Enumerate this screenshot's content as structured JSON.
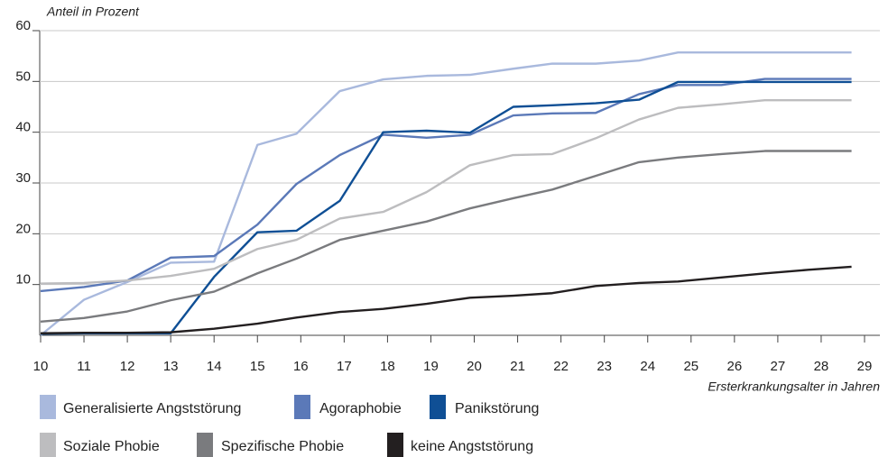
{
  "chart_data": {
    "type": "line",
    "y_label": "Anteil in Prozent",
    "x_label": "Ersterkrankungsalter in Jahren",
    "x": [
      10,
      11,
      12,
      13,
      14,
      15,
      15.9,
      16.9,
      17.9,
      18.9,
      19.9,
      20.9,
      21.8,
      22.8,
      23.8,
      24.7,
      25.7,
      26.7,
      27.7,
      28.7
    ],
    "xlim": [
      10,
      29
    ],
    "xticks": [
      10,
      11,
      12,
      13,
      14,
      15,
      16,
      17,
      18,
      19,
      20,
      21,
      22,
      23,
      24,
      25,
      26,
      27,
      28,
      29
    ],
    "ylim": [
      0,
      60
    ],
    "yticks": [
      10,
      20,
      30,
      40,
      50,
      60
    ],
    "grid": true,
    "series": [
      {
        "name": "Generalisierte Angststörung",
        "color": "#a9b9dd",
        "values": [
          0,
          7,
          10.5,
          14.3,
          14.5,
          37.5,
          39.7,
          48.1,
          50.4,
          51.1,
          51.3,
          52.5,
          53.5,
          53.5,
          54.1,
          55.7,
          55.7,
          55.7,
          55.7,
          55.7
        ]
      },
      {
        "name": "Agoraphobie",
        "color": "#5b79b8",
        "values": [
          8.7,
          9.5,
          10.8,
          15.3,
          15.6,
          21.8,
          29.8,
          35.5,
          39.5,
          38.9,
          39.5,
          43.3,
          43.7,
          43.8,
          47.5,
          49.3,
          49.3,
          50.5,
          50.5,
          50.5
        ]
      },
      {
        "name": "Panikstörung",
        "color": "#0f4f95",
        "values": [
          0.3,
          0.4,
          0.4,
          0.4,
          11.5,
          20.3,
          20.6,
          26.5,
          40,
          40.3,
          39.9,
          45,
          45.3,
          45.7,
          46.4,
          49.9,
          49.9,
          49.9,
          49.9,
          49.9
        ]
      },
      {
        "name": "Soziale Phobie",
        "color": "#bdbdbf",
        "values": [
          10.2,
          10.3,
          10.8,
          11.7,
          13.1,
          17,
          18.8,
          23,
          24.3,
          28.2,
          33.5,
          35.5,
          35.7,
          38.8,
          42.5,
          44.8,
          45.5,
          46.3,
          46.3,
          46.3
        ]
      },
      {
        "name": "Spezifische Phobie",
        "color": "#7a7b7e",
        "values": [
          2.7,
          3.4,
          4.7,
          6.9,
          8.6,
          12.2,
          15.1,
          18.8,
          20.6,
          22.4,
          25,
          27,
          28.7,
          31.4,
          34.1,
          35,
          35.7,
          36.3,
          36.3,
          36.3
        ]
      },
      {
        "name": "keine Angststörung",
        "color": "#231f20",
        "values": [
          0.4,
          0.5,
          0.5,
          0.6,
          1.3,
          2.3,
          3.5,
          4.6,
          5.2,
          6.2,
          7.4,
          7.8,
          8.3,
          9.7,
          10.3,
          10.6,
          11.4,
          12.2,
          12.9,
          13.5
        ]
      }
    ]
  }
}
